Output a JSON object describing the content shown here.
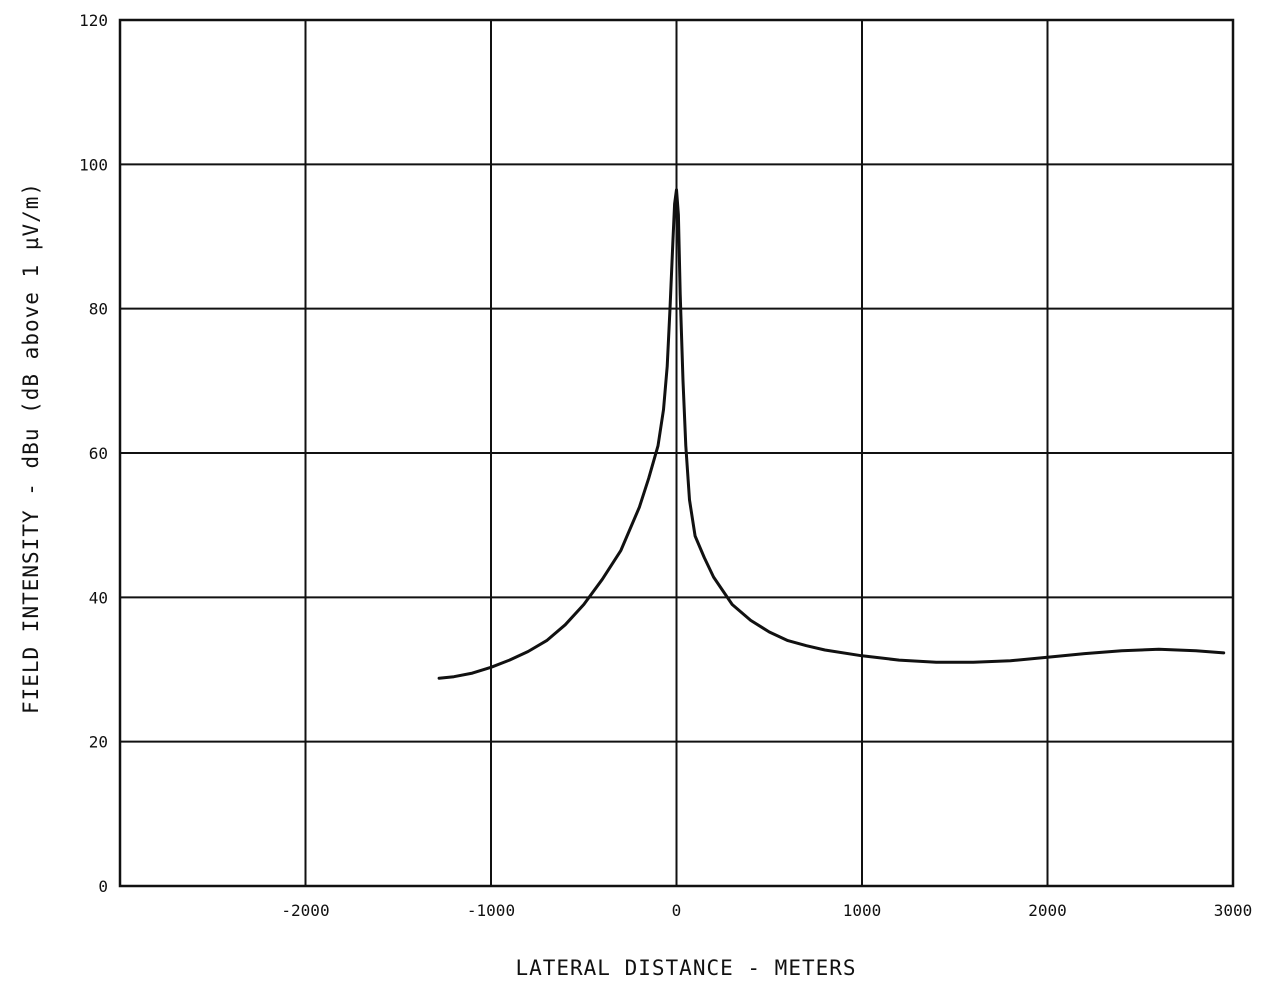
{
  "chart_data": {
    "type": "line",
    "title": "",
    "xlabel": "LATERAL DISTANCE - METERS",
    "ylabel": "FIELD INTENSITY - dBu (dB above 1 µV/m)",
    "xlim": [
      -3000,
      3000
    ],
    "ylim": [
      0,
      120
    ],
    "x_ticks": [
      -2000,
      -1000,
      0,
      1000,
      2000,
      3000
    ],
    "x_tick_labels": [
      "-2000",
      "-1000",
      "0",
      "1000",
      "2000",
      "3000"
    ],
    "y_ticks": [
      0,
      20,
      40,
      60,
      80,
      100,
      120
    ],
    "y_tick_labels": [
      "0",
      "20",
      "40",
      "60",
      "80",
      "100",
      "120"
    ],
    "grid": true,
    "series": [
      {
        "x": [
          -1280,
          -1200,
          -1100,
          -1000,
          -900,
          -800,
          -700,
          -600,
          -500,
          -400,
          -300,
          -200,
          -150,
          -100,
          -70,
          -50,
          -35,
          -20,
          -10,
          0,
          10,
          20,
          35,
          50,
          70,
          100,
          150,
          200,
          300,
          400,
          500,
          600,
          700,
          800,
          1000,
          1200,
          1400,
          1600,
          1800,
          2000,
          2200,
          2400,
          2600,
          2800,
          2950
        ],
        "y": [
          28.8,
          29.0,
          29.5,
          30.3,
          31.3,
          32.5,
          34.0,
          36.2,
          39.0,
          42.5,
          46.5,
          52.5,
          56.5,
          61.0,
          66.0,
          72.0,
          80.0,
          89.0,
          94.5,
          96.5,
          93.0,
          82.0,
          70.0,
          61.0,
          53.5,
          48.5,
          45.5,
          42.8,
          39.0,
          36.8,
          35.2,
          34.0,
          33.3,
          32.7,
          31.9,
          31.3,
          31.0,
          31.0,
          31.2,
          31.7,
          32.2,
          32.6,
          32.8,
          32.6,
          32.3
        ]
      }
    ]
  }
}
